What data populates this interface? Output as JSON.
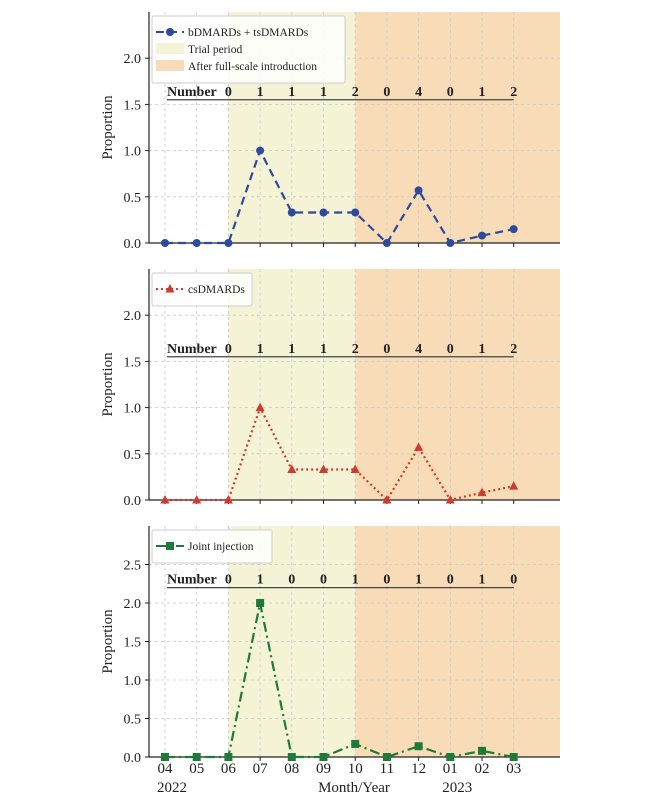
{
  "chart_data": [
    {
      "type": "line",
      "series": [
        {
          "name": "bDMARDs + tsDMARDs",
          "color": "#2e4a9b",
          "marker": "circle",
          "dash": "8,5",
          "values": [
            0,
            0,
            0,
            1.0,
            0.33,
            0.33,
            0.33,
            0,
            0.57,
            0,
            0.08,
            0.15
          ]
        }
      ],
      "legend": [
        {
          "label": "bDMARDs + tsDMARDs",
          "kind": "line"
        },
        {
          "label": "Trial period",
          "kind": "patch",
          "color": "#f5f3d6"
        },
        {
          "label": "After full-scale introduction",
          "kind": "patch",
          "color": "#f8dcb7"
        }
      ],
      "ylabel": "Proportion",
      "ylim": [
        0,
        2.5
      ],
      "yticks": [
        "0.0",
        "0.5",
        "1.0",
        "1.5",
        "2.0"
      ],
      "ytick_values": [
        0,
        0.5,
        1.0,
        1.5,
        2.0
      ],
      "number_label": "Number",
      "numbers": [
        "0",
        "1",
        "1",
        "1",
        "2",
        "0",
        "4",
        "0",
        "1",
        "2"
      ],
      "numbers_y": 1.55
    },
    {
      "type": "line",
      "series": [
        {
          "name": "csDMARDs",
          "color": "#d03a2e",
          "marker": "triangle",
          "dash": "2,3",
          "values": [
            0,
            0,
            0,
            1.0,
            0.33,
            0.33,
            0.33,
            0,
            0.57,
            0,
            0.08,
            0.15
          ]
        }
      ],
      "legend": [
        {
          "label": "csDMARDs",
          "kind": "line"
        }
      ],
      "ylabel": "Proportion",
      "ylim": [
        0,
        2.5
      ],
      "yticks": [
        "0.0",
        "0.5",
        "1.0",
        "1.5",
        "2.0"
      ],
      "ytick_values": [
        0,
        0.5,
        1.0,
        1.5,
        2.0
      ],
      "number_label": "Number",
      "numbers": [
        "0",
        "1",
        "1",
        "1",
        "2",
        "0",
        "4",
        "0",
        "1",
        "2"
      ],
      "numbers_y": 1.55
    },
    {
      "type": "line",
      "series": [
        {
          "name": "Joint injection",
          "color": "#1f7a3a",
          "marker": "square",
          "dash": "10,4,2,4",
          "values": [
            0,
            0,
            0,
            2.0,
            0,
            0,
            0.17,
            0,
            0.14,
            0,
            0.08,
            0
          ]
        }
      ],
      "legend": [
        {
          "label": "Joint injection",
          "kind": "line"
        }
      ],
      "ylabel": "Proportion",
      "ylim": [
        0,
        3.0
      ],
      "yticks": [
        "0.0",
        "0.5",
        "1.0",
        "1.5",
        "2.0",
        "2.5"
      ],
      "ytick_values": [
        0,
        0.5,
        1.0,
        1.5,
        2.0,
        2.5
      ],
      "number_label": "Number",
      "numbers": [
        "0",
        "1",
        "0",
        "0",
        "1",
        "0",
        "1",
        "0",
        "1",
        "0"
      ],
      "numbers_y": 2.2
    }
  ],
  "x_axis": {
    "categories": [
      "04",
      "05",
      "06",
      "07",
      "08",
      "09",
      "10",
      "11",
      "12",
      "01",
      "02",
      "03"
    ],
    "year_labels": [
      {
        "text": "2022",
        "at_index": 0
      },
      {
        "text": "2023",
        "at_index": 9
      }
    ],
    "xlabel": "Month/Year",
    "shaded_regions": [
      {
        "from_index": 2,
        "to_index": 6,
        "color": "#f5f3d6"
      },
      {
        "from_index": 6,
        "to_index": 12,
        "color": "#f8dcb7"
      }
    ]
  }
}
